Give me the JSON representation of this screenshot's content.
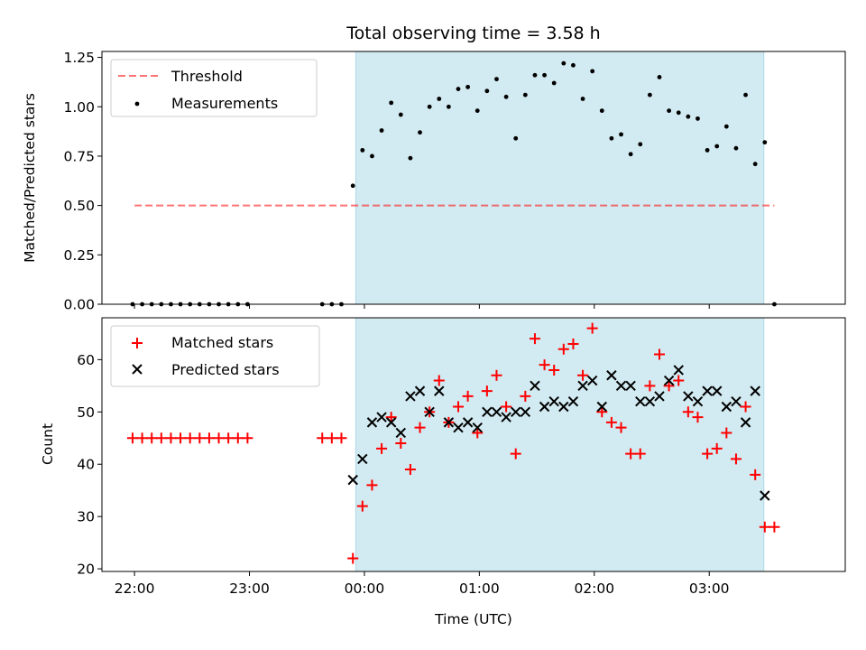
{
  "colors": {
    "observing_band": "#add8e6",
    "threshold": "#ff0000",
    "measurements": "#000000",
    "matched": "#ff0000",
    "predicted": "#000000"
  },
  "chart_data": [
    {
      "type": "scatter",
      "title": "Total observing time = 3.58 h",
      "xlabel": "",
      "ylabel": "Matched/Predicted stars",
      "ylim": [
        0,
        1.28
      ],
      "yticks": [
        "0.00",
        "0.25",
        "0.50",
        "0.75",
        "1.00",
        "1.25"
      ],
      "xlim_minutes": [
        -17,
        371
      ],
      "xticks_minutes": [
        0,
        60,
        120,
        180,
        240,
        300
      ],
      "observing_window_minutes": [
        115.5,
        328.5
      ],
      "threshold": {
        "name": "Threshold",
        "value": 0.5,
        "x_range_minutes": [
          0,
          334
        ]
      },
      "legend": {
        "position": "upper left",
        "entries": [
          "Threshold",
          "Measurements"
        ]
      },
      "series": [
        {
          "name": "Measurements",
          "marker": "dot",
          "x_minutes": [
            -1,
            4,
            9,
            14,
            19,
            24,
            29,
            34,
            39,
            44,
            49,
            54,
            59,
            98,
            103,
            108,
            114,
            119,
            124,
            129,
            134,
            139,
            144,
            149,
            154,
            159,
            164,
            169,
            174,
            179,
            184,
            189,
            194,
            199,
            204,
            209,
            214,
            219,
            224,
            229,
            234,
            239,
            244,
            249,
            254,
            259,
            264,
            269,
            274,
            279,
            284,
            289,
            294,
            299,
            304,
            309,
            314,
            319,
            324,
            329,
            334
          ],
          "y": [
            0,
            0,
            0,
            0,
            0,
            0,
            0,
            0,
            0,
            0,
            0,
            0,
            0,
            0,
            0,
            0,
            0.6,
            0.78,
            0.75,
            0.88,
            1.02,
            0.96,
            0.74,
            0.87,
            1.0,
            1.04,
            1.0,
            1.09,
            1.1,
            0.98,
            1.08,
            1.14,
            1.05,
            0.84,
            1.06,
            1.16,
            1.16,
            1.12,
            1.22,
            1.21,
            1.04,
            1.18,
            0.98,
            0.84,
            0.86,
            0.76,
            0.81,
            1.06,
            1.15,
            0.98,
            0.97,
            0.95,
            0.94,
            0.78,
            0.8,
            0.9,
            0.79,
            1.06,
            0.71,
            0.82,
            0
          ]
        }
      ]
    },
    {
      "type": "scatter",
      "title": "",
      "xlabel": "Time (UTC)",
      "ylabel": "Count",
      "ylim": [
        19.5,
        68
      ],
      "yticks": [
        "20",
        "30",
        "40",
        "50",
        "60"
      ],
      "xlim_minutes": [
        -17,
        371
      ],
      "xticks_minutes": [
        0,
        60,
        120,
        180,
        240,
        300
      ],
      "xtick_labels": [
        "22:00",
        "23:00",
        "00:00",
        "01:00",
        "02:00",
        "03:00"
      ],
      "observing_window_minutes": [
        115.5,
        328.5
      ],
      "legend": {
        "position": "upper left",
        "entries": [
          "Matched stars",
          "Predicted stars"
        ]
      },
      "series": [
        {
          "name": "Matched stars",
          "marker": "plus",
          "x_minutes": [
            -1,
            4,
            9,
            14,
            19,
            24,
            29,
            34,
            39,
            44,
            49,
            54,
            59,
            98,
            103,
            108,
            114,
            119,
            124,
            129,
            134,
            139,
            144,
            149,
            154,
            159,
            164,
            169,
            174,
            179,
            184,
            189,
            194,
            199,
            204,
            209,
            214,
            219,
            224,
            229,
            234,
            239,
            244,
            249,
            254,
            259,
            264,
            269,
            274,
            279,
            284,
            289,
            294,
            299,
            304,
            309,
            314,
            319,
            324,
            329,
            334
          ],
          "y": [
            45,
            45,
            45,
            45,
            45,
            45,
            45,
            45,
            45,
            45,
            45,
            45,
            45,
            45,
            45,
            45,
            22,
            32,
            36,
            43,
            49,
            44,
            39,
            47,
            50,
            56,
            48,
            51,
            53,
            46,
            54,
            57,
            51,
            42,
            53,
            64,
            59,
            58,
            62,
            63,
            57,
            66,
            50,
            48,
            47,
            42,
            42,
            55,
            61,
            55,
            56,
            50,
            49,
            42,
            43,
            46,
            41,
            51,
            38,
            28,
            28
          ]
        },
        {
          "name": "Predicted stars",
          "marker": "x",
          "x_minutes": [
            114,
            119,
            124,
            129,
            134,
            139,
            144,
            149,
            154,
            159,
            164,
            169,
            174,
            179,
            184,
            189,
            194,
            199,
            204,
            209,
            214,
            219,
            224,
            229,
            234,
            239,
            244,
            249,
            254,
            259,
            264,
            269,
            274,
            279,
            284,
            289,
            294,
            299,
            304,
            309,
            314,
            319,
            324,
            329
          ],
          "y": [
            37,
            41,
            48,
            49,
            48,
            46,
            53,
            54,
            50,
            54,
            48,
            47,
            48,
            47,
            50,
            50,
            49,
            50,
            50,
            55,
            51,
            52,
            51,
            52,
            55,
            56,
            51,
            57,
            55,
            55,
            52,
            52,
            53,
            56,
            58,
            53,
            52,
            54,
            54,
            51,
            52,
            48,
            54,
            34
          ]
        }
      ]
    }
  ]
}
